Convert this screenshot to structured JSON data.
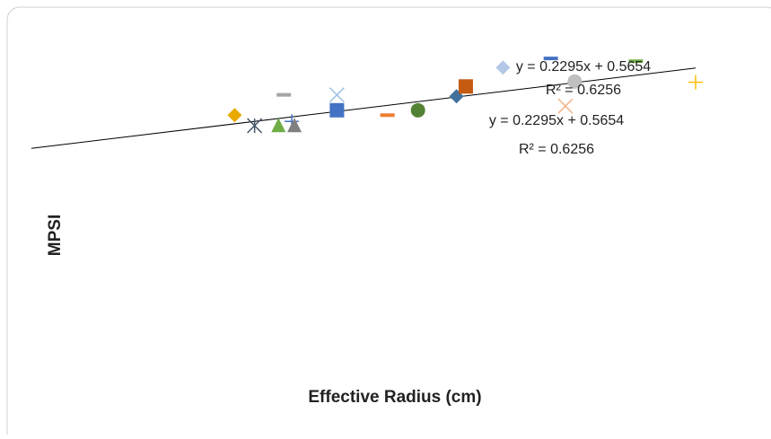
{
  "chart_data": {
    "type": "scatter",
    "x_label": "Effective Radius (cm)",
    "y_label": "MPSI",
    "xlim": [
      0,
      5
    ],
    "ylim": [
      -2.7,
      2.3
    ],
    "trendline": {
      "slope": 0.2295,
      "intercept": 0.5654,
      "color": "#000000"
    },
    "annotations": [
      "y = 0.2295x + 0.5654",
      "R² = 0.6256",
      "y = 0.2295x + 0.5654",
      "R² = 0.6256"
    ],
    "series": [
      {
        "marker": "diamond",
        "color": "#e8a900",
        "x": [
          1.53
        ],
        "values": [
          1.04
        ]
      },
      {
        "marker": "asterisk",
        "color": "#44546a",
        "x": [
          1.68
        ],
        "values": [
          0.89
        ]
      },
      {
        "marker": "triangle",
        "color": "#70ad47",
        "x": [
          1.86
        ],
        "values": [
          0.9
        ]
      },
      {
        "marker": "plus",
        "color": "#4472c4",
        "x": [
          1.96
        ],
        "values": [
          0.95
        ]
      },
      {
        "marker": "triangle",
        "color": "#7f7f7f",
        "x": [
          1.98
        ],
        "values": [
          0.9
        ]
      },
      {
        "marker": "dash",
        "color": "#a5a5a5",
        "x": [
          1.9
        ],
        "values": [
          1.33
        ]
      },
      {
        "marker": "x",
        "color": "#9dc3e6",
        "x": [
          2.3
        ],
        "values": [
          1.33
        ]
      },
      {
        "marker": "square",
        "color": "#4472c4",
        "x": [
          2.3
        ],
        "values": [
          1.11
        ]
      },
      {
        "marker": "dash",
        "color": "#ed7d31",
        "x": [
          2.68
        ],
        "values": [
          1.04
        ]
      },
      {
        "marker": "circle",
        "color": "#548235",
        "x": [
          2.91
        ],
        "values": [
          1.11
        ]
      },
      {
        "marker": "diamond",
        "color": "#41719c",
        "x": [
          3.2
        ],
        "values": [
          1.31
        ]
      },
      {
        "marker": "square",
        "color": "#c55a11",
        "x": [
          3.27
        ],
        "values": [
          1.45
        ]
      },
      {
        "marker": "diamond",
        "color": "#b4c7e7",
        "x": [
          3.55
        ],
        "values": [
          1.72
        ]
      },
      {
        "marker": "dash",
        "color": "#4472c4",
        "x": [
          3.91
        ],
        "values": [
          1.85
        ]
      },
      {
        "marker": "dash",
        "color": "#70ad47",
        "x": [
          4.55
        ],
        "values": [
          1.81
        ]
      },
      {
        "marker": "circle",
        "color": "#bfbfbf",
        "x": [
          4.09
        ],
        "values": [
          1.52
        ]
      },
      {
        "marker": "x",
        "color": "#f4b183",
        "x": [
          4.02
        ],
        "values": [
          1.17
        ]
      },
      {
        "marker": "plus",
        "color": "#ffc000",
        "x": [
          5.0
        ],
        "values": [
          1.51
        ]
      }
    ]
  }
}
